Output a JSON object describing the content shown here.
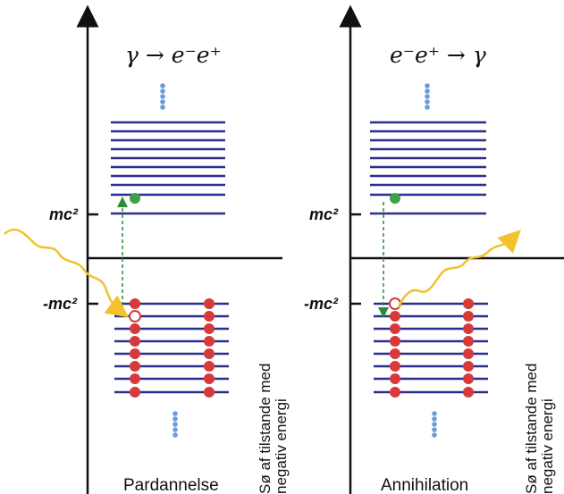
{
  "left": {
    "title": "γ → e⁻e⁺",
    "mc2_label": "mc²",
    "neg_mc2_label": "-mc²",
    "caption": "Pardannelse",
    "side_label_line1": "Sø af tilstande med",
    "side_label_line2": "negativ energi"
  },
  "right": {
    "title": "e⁻e⁺ → γ",
    "mc2_label": "mc²",
    "neg_mc2_label": "-mc²",
    "caption": "Annihilation",
    "side_label_line1": "Sø af tilstande med",
    "side_label_line2": "negativ energi"
  },
  "colors": {
    "level_line": "#2a2f8f",
    "electron": "#3aa34a",
    "sea_particle": "#d63a3a",
    "hole": "#ffffff",
    "photon": "#f2c12e",
    "transition": "#2e8b3a",
    "continuation_dots": "#6b9bd9",
    "axis": "#111111"
  }
}
